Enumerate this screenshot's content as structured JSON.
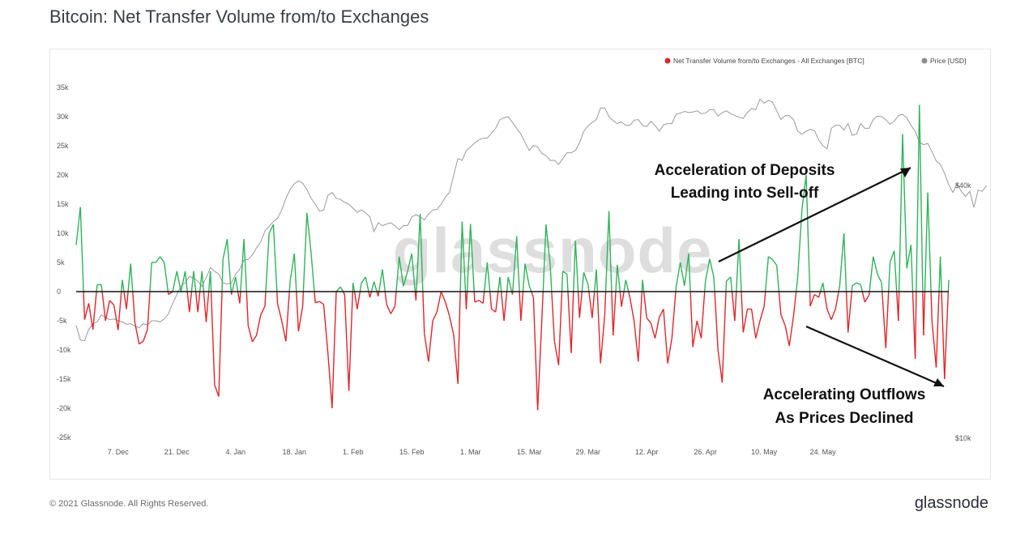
{
  "title": "Bitcoin: Net Transfer Volume from/to Exchanges",
  "watermark": "glassnode",
  "footer": {
    "copyright": "© 2021 Glassnode. All Rights Reserved.",
    "brand": "glassnode"
  },
  "legend": [
    {
      "label": "Net Transfer Volume from/to Exchanges - All Exchanges [BTC]",
      "color": "#e0262b"
    },
    {
      "label": "Price [USD]",
      "color": "#8c8c8c"
    }
  ],
  "annotations": {
    "deposits": [
      "Acceleration of Deposits",
      "Leading into Sell-off"
    ],
    "outflows": [
      "Accelerating Outflows",
      "As Prices Declined"
    ]
  },
  "colors": {
    "positive": "#2fb35a",
    "negative": "#e0262b",
    "price": "#9a9a9a",
    "zero_line": "#111111"
  },
  "chart_data": {
    "type": "line",
    "title": "Bitcoin: Net Transfer Volume from/to Exchanges",
    "ylim": [
      -25000,
      37000
    ],
    "yticks": [
      -25000,
      -20000,
      -15000,
      -10000,
      -5000,
      0,
      5000,
      10000,
      15000,
      20000,
      25000,
      30000,
      35000
    ],
    "ytick_labels": [
      "-25k",
      "-20k",
      "-15k",
      "-10k",
      "-5k",
      "0",
      "5k",
      "10k",
      "15k",
      "20k",
      "25k",
      "30k",
      "35k"
    ],
    "right_axis_labels": [
      "$40k",
      "$10k"
    ],
    "xtick_labels": [
      "7. Dec",
      "21. Dec",
      "4. Jan",
      "18. Jan",
      "1. Feb",
      "15. Feb",
      "1. Mar",
      "15. Mar",
      "29. Mar",
      "12. Apr",
      "26. Apr",
      "10. May",
      "24. May"
    ],
    "x_start": "2020-11-27",
    "legend_position": "top-right",
    "series": [
      {
        "name": "Net Transfer Volume from/to Exchanges - All Exchanges [BTC]",
        "values": [
          8000,
          14500,
          -4800,
          -2000,
          -6500,
          1200,
          1200,
          -5000,
          -1500,
          -2300,
          -6600,
          2000,
          -3000,
          4800,
          -5300,
          -9000,
          -8500,
          -6500,
          5000,
          5000,
          6000,
          5000,
          -500,
          0,
          3500,
          0,
          3500,
          -3500,
          3500,
          -3500,
          3500,
          -5200,
          3500,
          -16000,
          -18000,
          5500,
          9000,
          -500,
          2500,
          -2000,
          9000,
          -5800,
          -8600,
          -7500,
          -4000,
          -2500,
          10000,
          11500,
          -2000,
          -5000,
          -8500,
          1800,
          6500,
          -6800,
          -2500,
          13500,
          6600,
          -1900,
          -1700,
          -2200,
          -10500,
          -20000,
          0,
          800,
          -500,
          -17000,
          1500,
          -3000,
          1500,
          2500,
          -1000,
          1700,
          -800,
          3800,
          -2200,
          -3800,
          -2500,
          6000,
          900,
          3500,
          6500,
          -1500,
          13300,
          -7200,
          -12000,
          -5000,
          -3500,
          0,
          -1800,
          -4200,
          -7500,
          -15800,
          12000,
          -3000,
          11600,
          -1800,
          -1500,
          -2000,
          5000,
          -3000,
          -3500,
          2500,
          -5000,
          2500,
          -500,
          9500,
          -5000,
          4800,
          1000,
          -1000,
          -20300,
          -5000,
          11500,
          4500,
          -8500,
          -12600,
          3500,
          3000,
          -10500,
          8700,
          -4500,
          3300,
          1300,
          -4500,
          3800,
          -12300,
          -4000,
          13800,
          -7500,
          4600,
          -2600,
          2000,
          -1000,
          -5100,
          -12000,
          2000,
          -4500,
          -5400,
          -8000,
          -4400,
          -3000,
          -12300,
          -8000,
          700,
          5000,
          1000,
          6500,
          -9500,
          -5000,
          -8000,
          1800,
          5600,
          2500,
          -10000,
          -15600,
          1800,
          2500,
          -5000,
          9000,
          -7000,
          -3000,
          -3000,
          -8000,
          -5000,
          -2500,
          6000,
          5500,
          4500,
          -4000,
          -5800,
          -9300,
          -4200,
          2500,
          14000,
          20000,
          -2500,
          -500,
          -1000,
          1500,
          -3000,
          -4800,
          -3000,
          1000,
          10000,
          -7000,
          1000,
          1500,
          1200,
          -1800,
          -600,
          6000,
          3000,
          1500,
          -9700,
          5000,
          7000,
          -5000,
          27000,
          4000,
          8000,
          -11500,
          32000,
          -7500,
          17000,
          -5000,
          -13000,
          6000,
          -15000,
          2000
        ]
      },
      {
        "name": "Price [USD]",
        "values": [
          -5800,
          -8300,
          -8400,
          -6500,
          -5500,
          -5200,
          -4000,
          -4400,
          -4800,
          -4700,
          -5000,
          -5200,
          -5600,
          -5500,
          -5900,
          -6200,
          -5500,
          -5700,
          -5000,
          -5000,
          -5200,
          -4700,
          -3800,
          -2000,
          -500,
          1000,
          1500,
          2600,
          2300,
          1800,
          900,
          2400,
          4100,
          3500,
          3000,
          1500,
          1300,
          1500,
          3000,
          3800,
          5400,
          5500,
          6300,
          7500,
          8500,
          10400,
          11200,
          12000,
          12600,
          14000,
          16000,
          17500,
          18500,
          19000,
          18600,
          17500,
          16000,
          15000,
          13800,
          14000,
          16500,
          17000,
          16000,
          15800,
          15300,
          15000,
          14300,
          13600,
          14000,
          13500,
          12800,
          10300,
          11800,
          11300,
          11600,
          11800,
          11300,
          10600,
          11300,
          11300,
          12800,
          13200,
          12800,
          12300,
          13300,
          14000,
          14100,
          15000,
          16200,
          17000,
          20000,
          22800,
          22500,
          24200,
          24800,
          25500,
          26000,
          26300,
          26300,
          27200,
          28000,
          29500,
          29800,
          30000,
          29000,
          28000,
          27000,
          25600,
          24200,
          25100,
          24800,
          23700,
          23300,
          22500,
          22500,
          21800,
          22800,
          23800,
          23800,
          24200,
          25500,
          27500,
          28400,
          29000,
          29500,
          31500,
          31500,
          30000,
          29300,
          28800,
          29100,
          28500,
          28500,
          29400,
          29500,
          28500,
          28300,
          29200,
          28500,
          27500,
          28600,
          28800,
          28800,
          30400,
          30600,
          30900,
          30700,
          30800,
          31000,
          30500,
          30600,
          31200,
          31200,
          30100,
          30700,
          31000,
          30500,
          30200,
          29900,
          29700,
          30700,
          31400,
          31200,
          33000,
          32300,
          32800,
          32500,
          31000,
          29500,
          30200,
          30200,
          29500,
          27500,
          27000,
          27500,
          27800,
          27600,
          26000,
          25000,
          24500,
          28000,
          28500,
          28500,
          27700,
          28800,
          26800,
          27000,
          28800,
          28000,
          28000,
          29500,
          30100,
          30000,
          29500,
          28700,
          29200,
          30200,
          30400,
          29800,
          28500,
          27500,
          25600,
          25200,
          25400,
          24000,
          22400,
          21800,
          20300,
          18300,
          17000,
          18500,
          17200,
          16300,
          17200,
          14400,
          17400,
          17200,
          18200
        ]
      }
    ]
  }
}
